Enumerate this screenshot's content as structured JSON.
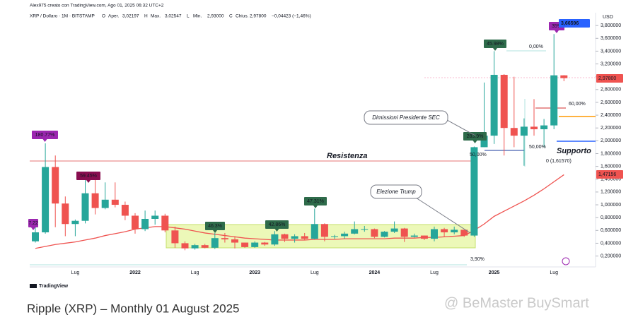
{
  "header": {
    "author_line": "Alex975 creato con TradingView.com, Ago 01, 2025 06:32 UTC+2",
    "symbol": "XRP / Dollaro · 1M · BITSTAMP",
    "ohlc": [
      {
        "key": "O",
        "label": "Aper.",
        "value": "3,02197"
      },
      {
        "key": "H",
        "label": "Max.",
        "value": "3,02547"
      },
      {
        "key": "L",
        "label": "Min.",
        "value": "2,93000"
      },
      {
        "key": "C",
        "label": "Chius.",
        "value": "2,97800"
      }
    ],
    "change": "−0,04423 (−1,46%)"
  },
  "chart_data": {
    "type": "candlestick",
    "y_unit": "USD",
    "categories": [
      null,
      null,
      null,
      null,
      "Lug",
      null,
      null,
      null,
      null,
      null,
      "2022",
      null,
      null,
      null,
      null,
      null,
      "Lug",
      null,
      null,
      null,
      null,
      null,
      "2023",
      null,
      null,
      null,
      null,
      null,
      "Lug",
      null,
      null,
      null,
      null,
      null,
      "2024",
      null,
      null,
      null,
      null,
      null,
      "Lug",
      null,
      null,
      null,
      null,
      null,
      "2025",
      null,
      null,
      null,
      null,
      null,
      "Lug",
      null
    ],
    "open": [
      0.43,
      0.57,
      1.59,
      1.02,
      0.7,
      0.75,
      1.18,
      0.95,
      1.08,
      1.0,
      0.83,
      0.62,
      0.78,
      0.83,
      0.6,
      0.4,
      0.32,
      0.37,
      0.33,
      0.48,
      0.46,
      0.41,
      0.34,
      0.41,
      0.38,
      0.54,
      0.47,
      0.51,
      0.47,
      0.7,
      0.5,
      0.51,
      0.55,
      0.62,
      0.62,
      0.5,
      0.58,
      0.63,
      0.5,
      0.52,
      0.47,
      0.62,
      0.57,
      0.61,
      0.52,
      1.9,
      2.08,
      3.03,
      2.2,
      2.08,
      2.22,
      2.18,
      2.24,
      3.02197
    ],
    "high": [
      0.65,
      1.96,
      1.77,
      1.13,
      0.77,
      1.41,
      1.41,
      1.35,
      1.35,
      1.05,
      0.87,
      0.91,
      0.91,
      0.86,
      0.66,
      0.43,
      0.39,
      0.39,
      0.56,
      0.56,
      0.51,
      0.41,
      0.43,
      0.42,
      0.59,
      0.55,
      0.54,
      0.56,
      0.94,
      0.71,
      0.53,
      0.58,
      0.74,
      0.67,
      0.63,
      0.59,
      0.74,
      0.64,
      0.55,
      0.52,
      0.66,
      0.64,
      0.66,
      0.61,
      1.91,
      2.91,
      3.4,
      3.04,
      3.0,
      2.35,
      2.65,
      2.34,
      3.66596,
      3.02547
    ],
    "low": [
      0.41,
      0.55,
      0.65,
      0.51,
      0.51,
      0.71,
      0.85,
      0.93,
      0.96,
      0.76,
      0.55,
      0.59,
      0.69,
      0.57,
      0.33,
      0.29,
      0.3,
      0.32,
      0.31,
      0.41,
      0.32,
      0.33,
      0.33,
      0.36,
      0.36,
      0.42,
      0.41,
      0.45,
      0.46,
      0.43,
      0.47,
      0.47,
      0.54,
      0.58,
      0.48,
      0.49,
      0.56,
      0.42,
      0.49,
      0.45,
      0.43,
      0.5,
      0.54,
      0.5,
      0.5,
      1.9,
      1.95,
      1.77,
      1.9,
      1.61,
      2.08,
      1.9,
      2.18,
      2.93
    ],
    "close": [
      0.57,
      1.59,
      1.02,
      0.7,
      0.75,
      1.18,
      0.95,
      1.08,
      1.0,
      0.83,
      0.62,
      0.78,
      0.83,
      0.6,
      0.4,
      0.32,
      0.37,
      0.33,
      0.48,
      0.46,
      0.41,
      0.34,
      0.41,
      0.38,
      0.54,
      0.47,
      0.51,
      0.47,
      0.7,
      0.5,
      0.51,
      0.55,
      0.62,
      0.62,
      0.5,
      0.58,
      0.63,
      0.5,
      0.52,
      0.47,
      0.62,
      0.57,
      0.61,
      0.52,
      1.9,
      2.08,
      3.03,
      2.2,
      2.08,
      2.22,
      2.18,
      2.24,
      3.02197,
      2.978
    ],
    "up_color": "#26a69a",
    "down_color": "#ef5350",
    "ma": {
      "color": "#ef5350",
      "values": [
        0.32,
        0.35,
        0.38,
        0.4,
        0.42,
        0.45,
        0.48,
        0.52,
        0.55,
        0.58,
        0.62,
        0.64,
        0.66,
        0.66,
        0.64,
        0.62,
        0.59,
        0.56,
        0.54,
        0.52,
        0.5,
        0.48,
        0.47,
        0.46,
        0.45,
        0.45,
        0.45,
        0.45,
        0.46,
        0.46,
        0.46,
        0.47,
        0.47,
        0.47,
        0.47,
        0.47,
        0.48,
        0.48,
        0.48,
        0.49,
        0.49,
        0.5,
        0.51,
        0.52,
        0.6,
        0.7,
        0.82,
        0.9,
        0.98,
        1.06,
        1.15,
        1.25,
        1.36,
        1.47
      ]
    },
    "ylim": [
      0.03,
      4.0
    ],
    "yticks": [
      {
        "value": 0.2,
        "label": "0,200000"
      },
      {
        "value": 0.4,
        "label": "0,400000"
      },
      {
        "value": 0.6,
        "label": "0,600000"
      },
      {
        "value": 0.8,
        "label": "0,800000"
      },
      {
        "value": 1,
        "label": "1,000000"
      },
      {
        "value": 1.2,
        "label": "1,200000"
      },
      {
        "value": 1.4,
        "label": "1,400000"
      },
      {
        "value": 1.6,
        "label": "1,600000"
      },
      {
        "value": 1.8,
        "label": "1,800000"
      },
      {
        "value": 2,
        "label": "2,000000"
      },
      {
        "value": 2.2,
        "label": "2,200000"
      },
      {
        "value": 2.4,
        "label": "2,400000"
      },
      {
        "value": 2.6,
        "label": "2,600000"
      },
      {
        "value": 2.8,
        "label": "2,800000"
      },
      {
        "value": 3,
        "label": "3,000000"
      },
      {
        "value": 3.2,
        "label": "3,200000"
      },
      {
        "value": 3.4,
        "label": "3,400000"
      },
      {
        "value": 3.6,
        "label": "3,600000"
      },
      {
        "value": 3.8,
        "label": "3,800000"
      }
    ],
    "grid": false,
    "flags": [
      {
        "text": "7.22",
        "color": "#9c27b0"
      },
      {
        "text": "180.77%",
        "color": "#9c27b0"
      },
      {
        "text": "59.45%",
        "color": "#880e4f"
      },
      {
        "text": "46.3%",
        "color": "#2e6b4a"
      },
      {
        "text": "42.86%",
        "color": "#2e6b4a"
      },
      {
        "text": "47.31%",
        "color": "#2e6b4a"
      },
      {
        "text": "283.9%",
        "color": "#2e6b4a"
      },
      {
        "text": "45.98%",
        "color": "#2e6b4a"
      },
      {
        "text": "35%",
        "color": "#9c27b0"
      }
    ],
    "price_labels": [
      {
        "text": "3,66596",
        "color": "#2962ff"
      },
      {
        "text": "2,97800",
        "color": "#ef5350"
      },
      {
        "text": "1,47156",
        "color": "#ef5350"
      }
    ],
    "notes": [
      "Dimissioni Presidente SEC",
      "Elezione Trump"
    ],
    "level_texts": [
      {
        "text": "Resistenza",
        "color": "#e53935"
      },
      {
        "text": "Supporto",
        "color": "#2962ff"
      },
      {
        "text": "0,00%",
        "color": "#9fd8d4"
      },
      {
        "text": "50,00%",
        "color": "#2962ff"
      },
      {
        "text": "60,00%",
        "color": "#ef5350"
      },
      {
        "text": "50,00%",
        "color": "#f28b82"
      },
      {
        "text": "0 (1,61570)",
        "color": "#b0bec5"
      },
      {
        "text": "3,90%",
        "color": "#9fd8d4"
      }
    ]
  },
  "footer": {
    "logo": "TradingView",
    "caption": "Ripple (XRP) – Monthly 01 August 2025",
    "watermark": "@ BeMaster BuySmart"
  }
}
